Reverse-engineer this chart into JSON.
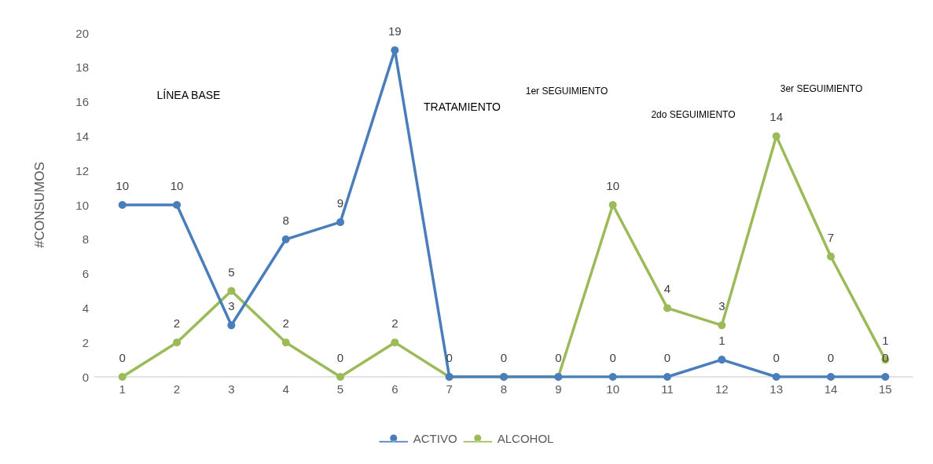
{
  "chart_data": {
    "type": "line",
    "ylabel": "#CONSUMOS",
    "categories": [
      "1",
      "2",
      "3",
      "4",
      "5",
      "6",
      "7",
      "8",
      "9",
      "10",
      "11",
      "12",
      "13",
      "14",
      "15"
    ],
    "series": [
      {
        "name": "ACTIVO",
        "color": "#4a7ebb",
        "values": [
          10,
          10,
          3,
          8,
          9,
          19,
          0,
          0,
          0,
          0,
          0,
          1,
          0,
          0,
          0
        ],
        "value_labels": [
          "10",
          "10",
          "3",
          "8",
          "9",
          "19",
          "0",
          "0",
          "0",
          "0",
          "0",
          "1",
          "0",
          "0",
          "0"
        ]
      },
      {
        "name": "ALCOHOL",
        "color": "#9bbb59",
        "values": [
          0,
          2,
          5,
          2,
          0,
          2,
          0,
          0,
          0,
          10,
          4,
          3,
          14,
          7,
          1
        ],
        "value_labels": [
          "0",
          "2",
          "5",
          "2",
          "0",
          "2",
          null,
          null,
          null,
          "10",
          "4",
          "3",
          "14",
          "7",
          "1"
        ]
      }
    ],
    "ylim": [
      0,
      20
    ],
    "yticks": [
      0,
      2,
      4,
      6,
      8,
      10,
      12,
      14,
      16,
      18,
      20
    ],
    "legend": "bottom",
    "marker": "circle",
    "line_style": "solid",
    "grid": false,
    "annotations": [
      "LÍNEA BASE",
      "TRATAMIENTO",
      "1er SEGUIMIENTO",
      "2do SEGUIMIENTO",
      "3er SEGUIMIENTO"
    ]
  }
}
